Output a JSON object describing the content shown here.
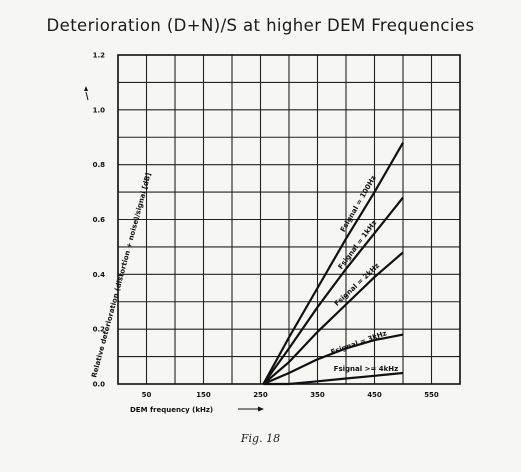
{
  "figure": {
    "title": "Deterioration (D+N)/S at higher DEM Frequencies",
    "caption": "Fig. 18"
  },
  "chart_data": {
    "type": "line",
    "title": "Deterioration (D+N)/S at higher DEM Frequencies",
    "xlabel": "DEM frequency (kHz)",
    "ylabel": "Relative deterioration (distortion + noise)/signal [dB]",
    "xlim": [
      0,
      600
    ],
    "ylim": [
      0,
      1.2
    ],
    "x_ticks": [
      0,
      50,
      100,
      150,
      200,
      250,
      300,
      350,
      400,
      450,
      500,
      550,
      600
    ],
    "x_tick_labels": [
      "50",
      "150",
      "250",
      "350",
      "450",
      "550"
    ],
    "x_tick_label_values": [
      50,
      150,
      250,
      350,
      450,
      550
    ],
    "y_tick_labels": [
      "0.0",
      "0.2",
      "0.4",
      "0.6",
      "0.8",
      "1.0",
      "1.2"
    ],
    "y_tick_label_values": [
      0,
      0.2,
      0.4,
      0.6,
      0.8,
      1.0,
      1.2
    ],
    "grid": true,
    "series": [
      {
        "name": "Fsignal = 100Hz",
        "x": [
          255,
          300,
          350,
          400,
          450,
          500
        ],
        "y": [
          0,
          0.17,
          0.35,
          0.53,
          0.7,
          0.88
        ]
      },
      {
        "name": "Fsignal = 1kHz",
        "x": [
          255,
          300,
          350,
          400,
          450,
          500
        ],
        "y": [
          0,
          0.13,
          0.28,
          0.42,
          0.55,
          0.68
        ]
      },
      {
        "name": "Fsignal = 2kHz",
        "x": [
          255,
          300,
          350,
          400,
          450,
          500
        ],
        "y": [
          0,
          0.08,
          0.19,
          0.29,
          0.39,
          0.48
        ]
      },
      {
        "name": "Fsignal = 3kHz",
        "x": [
          255,
          300,
          350,
          400,
          450,
          500
        ],
        "y": [
          0,
          0.04,
          0.09,
          0.13,
          0.16,
          0.18
        ]
      },
      {
        "name": "Fsignal >= 4kHz",
        "x": [
          255,
          300,
          350,
          400,
          450,
          500
        ],
        "y": [
          0,
          0.0,
          0.01,
          0.02,
          0.03,
          0.04
        ]
      }
    ],
    "annotations": [
      "Fsignal = 100Hz",
      "Fsignal = 1kHz",
      "Fsignal = 2kHz",
      "Fsignal = 3kHz",
      "Fsignal >= 4kHz"
    ]
  }
}
